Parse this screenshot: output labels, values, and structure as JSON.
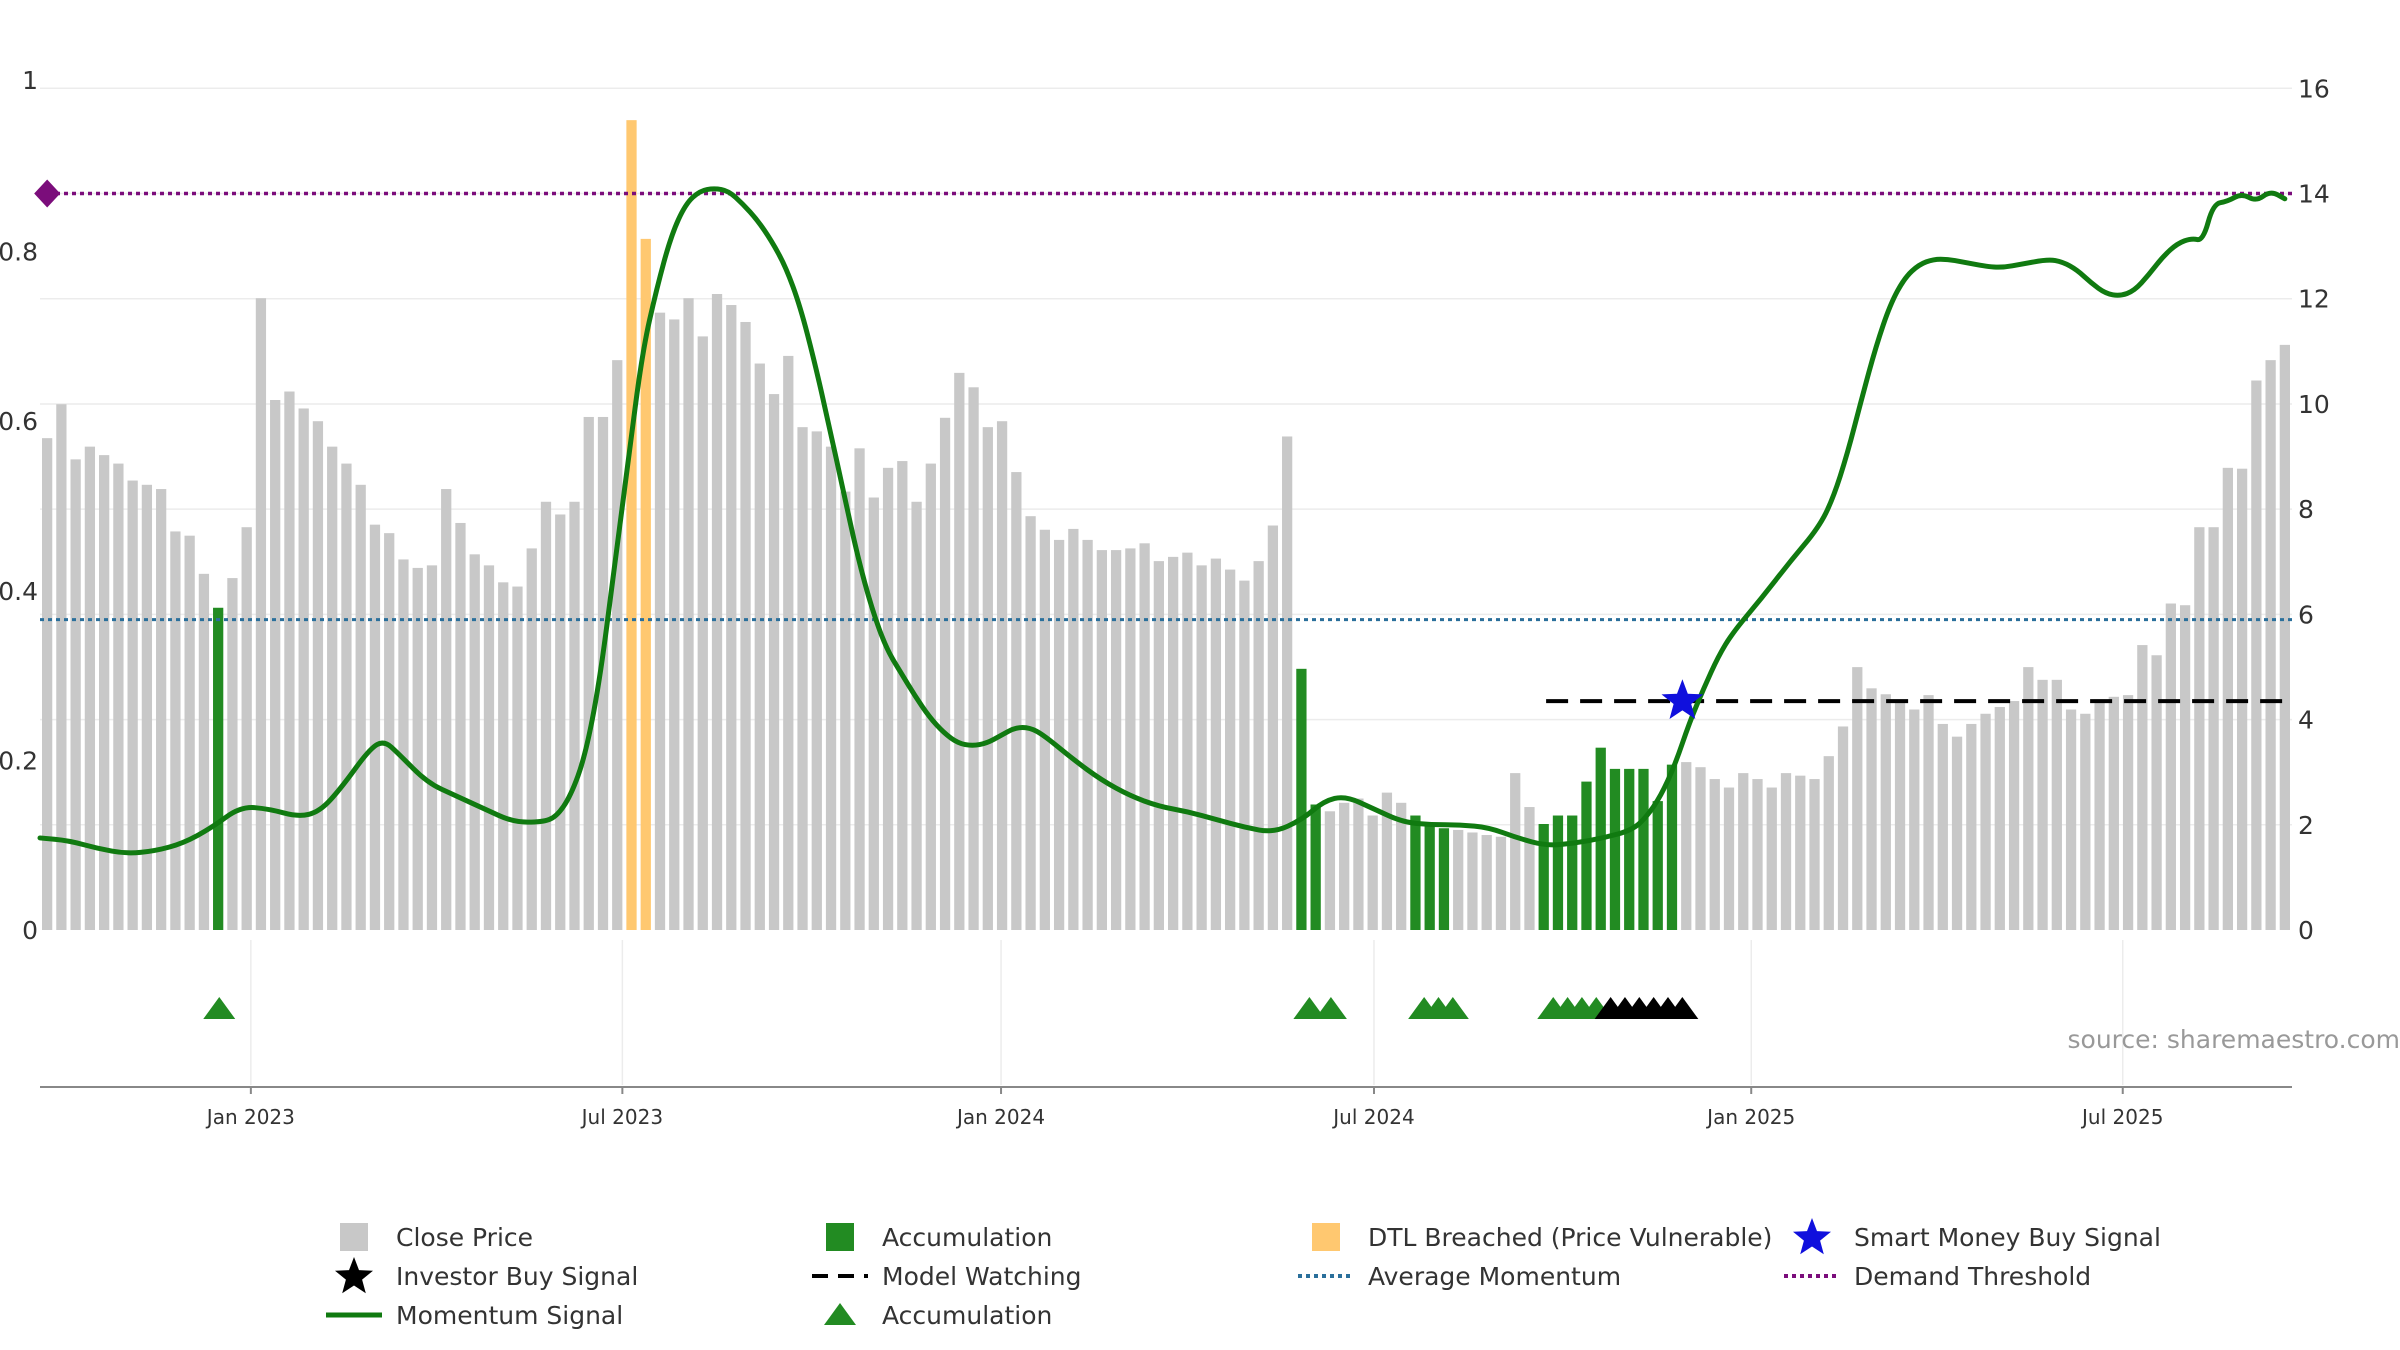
{
  "colors": {
    "price_bar": "#c8c8c8",
    "accumulation": "#228b22",
    "dtl": "#ffc870",
    "momentum": "#107a10",
    "smart_money": "#1010dd",
    "investor": "#000000",
    "avg_momentum": "#2a6f9b",
    "demand": "#7b0d7b",
    "watch": "#000000",
    "grid": "#ececec",
    "axis": "#888888"
  },
  "chart_data": {
    "type": "bar",
    "left_axis": {
      "ylim": [
        0,
        1
      ],
      "ticks": [
        0,
        0.2,
        0.4,
        0.6,
        0.8
      ],
      "tick_labels": [
        "0",
        "0.2",
        "0.4",
        "0.6",
        "0.8"
      ],
      "top_label": "1"
    },
    "right_axis": {
      "ylim": [
        0,
        16.5
      ],
      "ticks": [
        0,
        2,
        4,
        6,
        8,
        10,
        12,
        14,
        16
      ],
      "tick_labels": [
        "0",
        "2",
        "4",
        "6",
        "8",
        "10",
        "12",
        "14",
        "16"
      ]
    },
    "x_axis": {
      "start_week": 0,
      "end_week": 157,
      "ticks": [
        {
          "label": "Jan 2023",
          "week": 14.7
        },
        {
          "label": "Jul 2023",
          "week": 40.6
        },
        {
          "label": "Jan 2024",
          "week": 67.0
        },
        {
          "label": "Jul 2024",
          "week": 93.0
        },
        {
          "label": "Jan 2025",
          "week": 119.3
        },
        {
          "label": "Jul 2025",
          "week": 145.2
        }
      ]
    },
    "price_bars": [
      0.58,
      0.62,
      0.555,
      0.57,
      0.56,
      0.55,
      0.53,
      0.525,
      0.52,
      0.47,
      0.465,
      0.42,
      0.38,
      0.415,
      0.475,
      0.745,
      0.625,
      0.635,
      0.615,
      0.6,
      0.57,
      0.55,
      0.525,
      0.478,
      0.468,
      0.437,
      0.427,
      0.43,
      0.52,
      0.48,
      0.443,
      0.43,
      0.41,
      0.405,
      0.45,
      0.505,
      0.49,
      0.505,
      0.605,
      0.605,
      0.672,
      0.955,
      0.815,
      0.728,
      0.72,
      0.745,
      0.7,
      0.75,
      0.737,
      0.717,
      0.668,
      0.632,
      0.677,
      0.593,
      0.588,
      0.57,
      0.517,
      0.568,
      0.51,
      0.545,
      0.553,
      0.505,
      0.55,
      0.604,
      0.657,
      0.64,
      0.593,
      0.6,
      0.54,
      0.488,
      0.472,
      0.46,
      0.473,
      0.46,
      0.448,
      0.448,
      0.45,
      0.456,
      0.435,
      0.44,
      0.445,
      0.43,
      0.438,
      0.425,
      0.412,
      0.435,
      0.477,
      0.582,
      0.308,
      0.148,
      0.14,
      0.15,
      0.155,
      0.135,
      0.162,
      0.15,
      0.135,
      0.125,
      0.12,
      0.118,
      0.115,
      0.112,
      0.11,
      0.185,
      0.145,
      0.125,
      0.135,
      0.135,
      0.175,
      0.215,
      0.19,
      0.19,
      0.19,
      0.152,
      0.195,
      0.198,
      0.192,
      0.178,
      0.168,
      0.185,
      0.178,
      0.168,
      0.185,
      0.182,
      0.178,
      0.205,
      0.24,
      0.31,
      0.285,
      0.278,
      0.27,
      0.26,
      0.277,
      0.243,
      0.228,
      0.243,
      0.255,
      0.263,
      0.27,
      0.31,
      0.295,
      0.295,
      0.26,
      0.255,
      0.272,
      0.275,
      0.277,
      0.336,
      0.324,
      0.385,
      0.383,
      0.475,
      0.475,
      0.545,
      0.544,
      0.648,
      0.672,
      0.69
    ],
    "accumulation_bar_indices": [
      12,
      88,
      89,
      96,
      97,
      98,
      105,
      106,
      107,
      108,
      109,
      110,
      111,
      112,
      113,
      114
    ],
    "dtl_breached_bar_indices": [
      41,
      42
    ],
    "momentum_signal": [
      [
        0,
        1.75
      ],
      [
        2,
        1.7
      ],
      [
        4,
        1.55
      ],
      [
        6,
        1.45
      ],
      [
        8,
        1.5
      ],
      [
        10,
        1.65
      ],
      [
        12,
        1.95
      ],
      [
        14,
        2.35
      ],
      [
        16,
        2.3
      ],
      [
        18,
        2.15
      ],
      [
        19.5,
        2.25
      ],
      [
        21,
        2.7
      ],
      [
        23,
        3.45
      ],
      [
        24,
        3.6
      ],
      [
        25,
        3.35
      ],
      [
        27,
        2.8
      ],
      [
        29,
        2.55
      ],
      [
        31,
        2.3
      ],
      [
        33,
        2.05
      ],
      [
        35,
        2.05
      ],
      [
        36,
        2.15
      ],
      [
        37,
        2.55
      ],
      [
        38,
        3.3
      ],
      [
        39,
        4.7
      ],
      [
        40,
        6.8
      ],
      [
        41,
        8.9
      ],
      [
        42,
        11
      ],
      [
        43,
        12.2
      ],
      [
        44,
        13.2
      ],
      [
        45,
        13.8
      ],
      [
        46,
        14.05
      ],
      [
        47,
        14.1
      ],
      [
        48,
        14.05
      ],
      [
        49,
        13.8
      ],
      [
        50,
        13.5
      ],
      [
        51,
        13.1
      ],
      [
        52,
        12.6
      ],
      [
        53,
        11.85
      ],
      [
        54,
        10.8
      ],
      [
        55,
        9.6
      ],
      [
        56,
        8.35
      ],
      [
        57,
        7.1
      ],
      [
        58,
        6.1
      ],
      [
        59,
        5.35
      ],
      [
        60,
        4.9
      ],
      [
        61,
        4.45
      ],
      [
        62,
        4.05
      ],
      [
        63,
        3.75
      ],
      [
        64,
        3.55
      ],
      [
        65,
        3.5
      ],
      [
        66,
        3.55
      ],
      [
        67,
        3.7
      ],
      [
        68,
        3.85
      ],
      [
        69,
        3.85
      ],
      [
        70,
        3.7
      ],
      [
        72,
        3.25
      ],
      [
        74,
        2.85
      ],
      [
        76,
        2.55
      ],
      [
        78,
        2.35
      ],
      [
        80,
        2.25
      ],
      [
        82,
        2.1
      ],
      [
        84,
        1.95
      ],
      [
        86,
        1.85
      ],
      [
        88,
        2.1
      ],
      [
        89.5,
        2.45
      ],
      [
        91,
        2.55
      ],
      [
        93,
        2.3
      ],
      [
        95,
        2.05
      ],
      [
        97,
        2.0
      ],
      [
        99,
        2.0
      ],
      [
        101,
        1.95
      ],
      [
        103,
        1.75
      ],
      [
        105,
        1.6
      ],
      [
        107,
        1.65
      ],
      [
        109,
        1.75
      ],
      [
        111,
        1.9
      ],
      [
        112,
        2.15
      ],
      [
        113,
        2.55
      ],
      [
        114,
        3.15
      ],
      [
        115,
        3.95
      ],
      [
        116,
        4.6
      ],
      [
        117,
        5.2
      ],
      [
        118,
        5.65
      ],
      [
        120,
        6.3
      ],
      [
        122,
        7.0
      ],
      [
        124,
        7.65
      ],
      [
        125,
        8.2
      ],
      [
        126,
        9.05
      ],
      [
        127,
        10.1
      ],
      [
        128,
        11.1
      ],
      [
        129,
        11.9
      ],
      [
        130,
        12.4
      ],
      [
        131,
        12.65
      ],
      [
        132,
        12.75
      ],
      [
        133,
        12.75
      ],
      [
        134,
        12.7
      ],
      [
        136,
        12.6
      ],
      [
        137,
        12.6
      ],
      [
        138,
        12.65
      ],
      [
        140,
        12.75
      ],
      [
        141,
        12.7
      ],
      [
        142,
        12.55
      ],
      [
        143,
        12.3
      ],
      [
        144,
        12.1
      ],
      [
        145,
        12.05
      ],
      [
        146,
        12.15
      ],
      [
        147,
        12.45
      ],
      [
        148,
        12.8
      ],
      [
        149,
        13.05
      ],
      [
        150,
        13.15
      ],
      [
        150.8,
        13.1
      ],
      [
        151.5,
        13.8
      ],
      [
        152.5,
        13.85
      ],
      [
        153.5,
        14.0
      ],
      [
        154.5,
        13.85
      ],
      [
        155.5,
        14.05
      ],
      [
        156.5,
        13.9
      ]
    ],
    "average_momentum": 5.9,
    "demand_threshold": 14.0,
    "model_watching": {
      "value": 4.35,
      "x_start": 105,
      "x_end": 157
    },
    "smart_money_buy_signal": {
      "x": 114.5,
      "y": 4.35
    },
    "accumulation_markers": [
      12,
      88,
      89.5,
      96,
      97,
      98,
      105,
      106,
      107,
      108
    ],
    "investor_buy_markers": [
      109,
      110,
      111,
      112,
      113,
      114
    ],
    "demand_marker": {
      "x": 0.5,
      "y": 14.0
    },
    "source_text": "source: sharemaestro.com",
    "legend": [
      {
        "label": "Close Price",
        "kind": "square",
        "color": "price_bar"
      },
      {
        "label": "Accumulation",
        "kind": "square",
        "color": "accumulation"
      },
      {
        "label": "DTL Breached (Price Vulnerable)",
        "kind": "square",
        "color": "dtl"
      },
      {
        "label": "Smart Money Buy Signal",
        "kind": "star",
        "color": "smart_money"
      },
      {
        "label": "Investor Buy Signal",
        "kind": "star",
        "color": "investor"
      },
      {
        "label": "Model Watching",
        "kind": "dash",
        "color": "watch"
      },
      {
        "label": "Average Momentum",
        "kind": "dot",
        "color": "avg_momentum"
      },
      {
        "label": "Demand Threshold",
        "kind": "dot",
        "color": "demand"
      },
      {
        "label": "Momentum Signal",
        "kind": "line",
        "color": "momentum"
      },
      {
        "label": "Accumulation",
        "kind": "triangle",
        "color": "accumulation"
      }
    ]
  }
}
